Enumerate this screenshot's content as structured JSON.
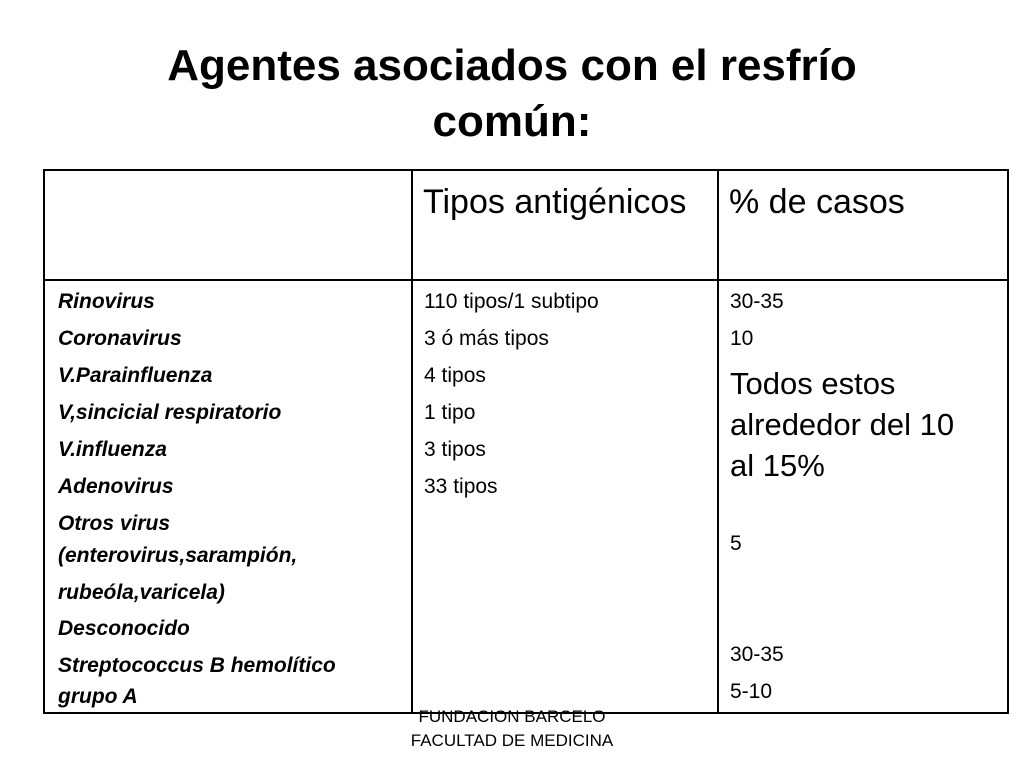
{
  "title": {
    "line1": "Agentes asociados con el resfrío",
    "line2": "común:"
  },
  "table": {
    "headers": [
      "",
      "Tipos antigénicos",
      "% de casos"
    ],
    "agents": [
      "Rinovirus",
      "Coronavirus",
      "V.Parainfluenza",
      "V,sincicial respiratorio",
      "V.influenza",
      "Adenovirus",
      "Otros virus",
      "(enterovirus,sarampión,",
      "rubeóla,varicela)",
      "Desconocido",
      "Streptococcus B hemolítico",
      "grupo A"
    ],
    "antigenic_types": [
      "110 tipos/1 subtipo",
      "3 ó más tipos",
      "4 tipos",
      "1 tipo",
      "3 tipos",
      "33 tipos"
    ],
    "percent_cases": [
      "30-35",
      "10",
      "Todos estos",
      "alrededor del 10",
      "al 15%",
      "5",
      "30-35",
      "5-10"
    ]
  },
  "footer": {
    "line1": "FUNDACION BARCELO",
    "line2": "FACULTAD DE MEDICINA"
  }
}
